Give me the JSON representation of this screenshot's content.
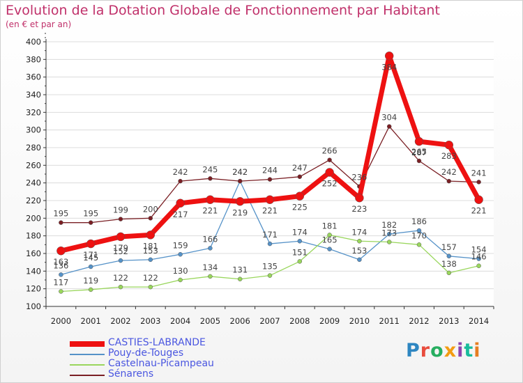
{
  "header": {
    "title": "Evolution de la Dotation Globale de Fonctionnement par Habitant",
    "subtitle": "(en € et par an)"
  },
  "logo": {
    "text": "Proxiti",
    "colors": [
      "#2e86c1",
      "#e84c3d",
      "#27ae60",
      "#f39c12",
      "#8e44ad",
      "#1abc9c",
      "#e67e22"
    ]
  },
  "chart_data": {
    "type": "line",
    "title": "Evolution de la Dotation Globale de Fonctionnement par Habitant",
    "subtitle": "(en € et par an)",
    "xlabel": "",
    "ylabel": "",
    "ylim": [
      100,
      400
    ],
    "yticks": [
      100,
      120,
      140,
      160,
      180,
      200,
      220,
      240,
      260,
      280,
      300,
      320,
      340,
      360,
      380,
      400
    ],
    "grid": "horizontal",
    "legend_position": "bottom-left",
    "categories": [
      "2000",
      "2001",
      "2002",
      "2003",
      "2004",
      "2005",
      "2006",
      "2007",
      "2008",
      "2009",
      "2010",
      "2011",
      "2012",
      "2013",
      "2014"
    ],
    "series": [
      {
        "name": "CASTIES-LABRANDE",
        "color": "#ee1111",
        "stroke": 7,
        "marker": 6,
        "label_side": "below",
        "values": [
          163,
          171,
          179,
          181,
          217,
          221,
          219,
          221,
          225,
          252,
          223,
          384,
          287,
          283,
          221
        ],
        "labels": [
          "163",
          "171",
          "179",
          "181",
          "217",
          "221",
          "219",
          "221",
          "225",
          "252",
          "223",
          "384",
          "287",
          "283",
          "221"
        ]
      },
      {
        "name": "Pouy-de-Touges",
        "color": "#5592c8",
        "stroke": 1.3,
        "marker": 3,
        "label_side": "above",
        "values": [
          136,
          145,
          152,
          153,
          159,
          166,
          242,
          171,
          174,
          165,
          153,
          182,
          186,
          157,
          154
        ],
        "labels": [
          "136",
          "145",
          "152",
          "153",
          "159",
          "166",
          "242",
          "171",
          "174",
          "165",
          "153",
          "182",
          "186",
          "157",
          "154"
        ]
      },
      {
        "name": "Castelnau-Picampeau",
        "color": "#99d65c",
        "stroke": 1.3,
        "marker": 3,
        "label_side": "above",
        "values": [
          117,
          119,
          122,
          122,
          130,
          134,
          131,
          135,
          151,
          181,
          174,
          173,
          170,
          138,
          146
        ],
        "labels": [
          "117",
          "119",
          "122",
          "122",
          "130",
          "134",
          "131",
          "135",
          "151",
          "181",
          "174",
          "173",
          "170",
          "138",
          "146"
        ]
      },
      {
        "name": "Sénarens",
        "color": "#7a1f24",
        "stroke": 1.3,
        "marker": 3,
        "label_side": "above",
        "values": [
          195,
          195,
          199,
          200,
          242,
          245,
          242,
          244,
          247,
          266,
          236,
          304,
          265,
          242,
          241
        ],
        "labels": [
          "195",
          "195",
          "199",
          "200",
          "242",
          "245",
          "242",
          "244",
          "247",
          "266",
          "236",
          "304",
          "265",
          "242",
          "241"
        ]
      }
    ]
  }
}
